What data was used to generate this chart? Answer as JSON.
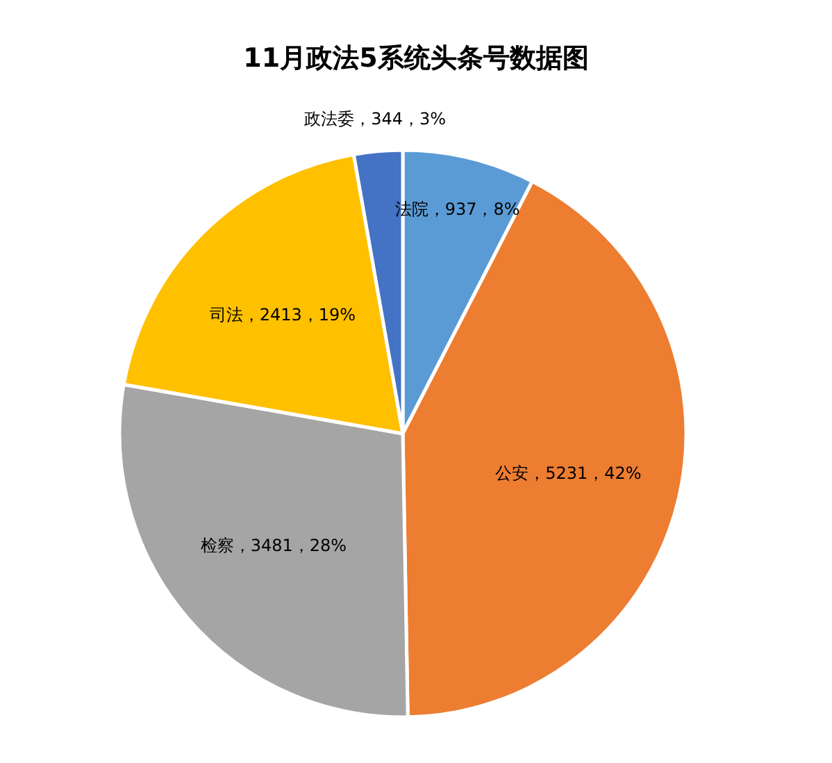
{
  "chart_data": {
    "type": "pie",
    "title": "11月政法5系统头条号数据图",
    "categories": [
      "法院",
      "公安",
      "检察",
      "司法",
      "政法委"
    ],
    "values": [
      937,
      5231,
      3481,
      2413,
      344
    ],
    "colors": [
      "#5b9bd5",
      "#ed7d31",
      "#a5a5a5",
      "#ffc000",
      "#4472c4"
    ],
    "value_labels": [
      "937，8%",
      "5231，42%",
      "3481，28%",
      "2413，19%",
      "344，3%"
    ]
  }
}
